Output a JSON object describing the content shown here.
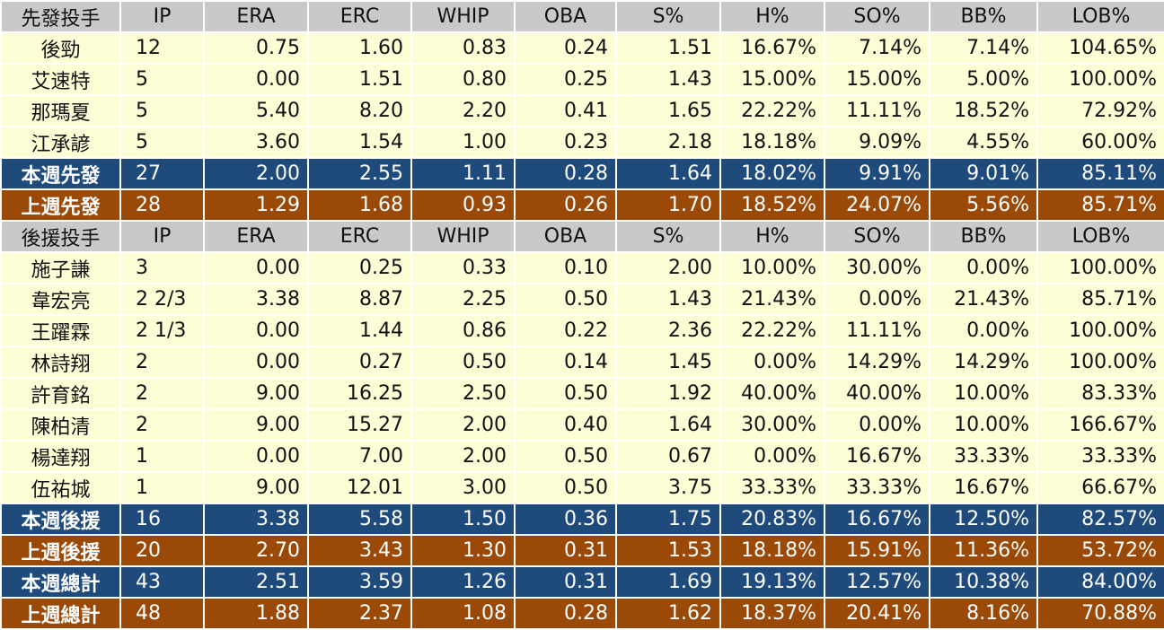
{
  "colors": {
    "header_bg": "#c9c9c9",
    "row_bg": "#fefed6",
    "this_week_bg": "#1f4a7c",
    "last_week_bg": "#9a4a06",
    "total_text": "#ffffff"
  },
  "table": {
    "columns": [
      "IP",
      "ERA",
      "ERC",
      "WHIP",
      "OBA",
      "S%",
      "H%",
      "SO%",
      "BB%",
      "LOB%"
    ],
    "rows": [
      {
        "kind": "header",
        "cells": [
          "先發投手",
          "IP",
          "ERA",
          "ERC",
          "WHIP",
          "OBA",
          "S%",
          "H%",
          "SO%",
          "BB%",
          "LOB%"
        ]
      },
      {
        "kind": "data",
        "cells": [
          "後勁",
          "12",
          "0.75",
          "1.60",
          "0.83",
          "0.24",
          "1.51",
          "16.67%",
          "7.14%",
          "7.14%",
          "104.65%"
        ]
      },
      {
        "kind": "data",
        "cells": [
          "艾速特",
          "5",
          "0.00",
          "1.51",
          "0.80",
          "0.25",
          "1.43",
          "15.00%",
          "15.00%",
          "5.00%",
          "100.00%"
        ]
      },
      {
        "kind": "data",
        "cells": [
          "那瑪夏",
          "5",
          "5.40",
          "8.20",
          "2.20",
          "0.41",
          "1.65",
          "22.22%",
          "11.11%",
          "18.52%",
          "72.92%"
        ]
      },
      {
        "kind": "data",
        "cells": [
          "江承諺",
          "5",
          "3.60",
          "1.54",
          "1.00",
          "0.23",
          "2.18",
          "18.18%",
          "9.09%",
          "4.55%",
          "60.00%"
        ]
      },
      {
        "kind": "blue",
        "cells": [
          "本週先發",
          "27",
          "2.00",
          "2.55",
          "1.11",
          "0.28",
          "1.64",
          "18.02%",
          "9.91%",
          "9.01%",
          "85.11%"
        ]
      },
      {
        "kind": "orange",
        "cells": [
          "上週先發",
          "28",
          "1.29",
          "1.68",
          "0.93",
          "0.26",
          "1.70",
          "18.52%",
          "24.07%",
          "5.56%",
          "85.71%"
        ]
      },
      {
        "kind": "header",
        "cells": [
          "後援投手",
          "IP",
          "ERA",
          "ERC",
          "WHIP",
          "OBA",
          "S%",
          "H%",
          "SO%",
          "BB%",
          "LOB%"
        ]
      },
      {
        "kind": "data",
        "cells": [
          "施子謙",
          "3",
          "0.00",
          "0.25",
          "0.33",
          "0.10",
          "2.00",
          "10.00%",
          "30.00%",
          "0.00%",
          "100.00%"
        ]
      },
      {
        "kind": "data",
        "cells": [
          "韋宏亮",
          "2 2/3",
          "3.38",
          "8.87",
          "2.25",
          "0.50",
          "1.43",
          "21.43%",
          "0.00%",
          "21.43%",
          "85.71%"
        ]
      },
      {
        "kind": "data",
        "cells": [
          "王躍霖",
          "2 1/3",
          "0.00",
          "1.44",
          "0.86",
          "0.22",
          "2.36",
          "22.22%",
          "11.11%",
          "0.00%",
          "100.00%"
        ]
      },
      {
        "kind": "data",
        "cells": [
          "林詩翔",
          "2",
          "0.00",
          "0.27",
          "0.50",
          "0.14",
          "1.45",
          "0.00%",
          "14.29%",
          "14.29%",
          "100.00%"
        ]
      },
      {
        "kind": "data",
        "cells": [
          "許育銘",
          "2",
          "9.00",
          "16.25",
          "2.50",
          "0.50",
          "1.92",
          "40.00%",
          "40.00%",
          "10.00%",
          "83.33%"
        ]
      },
      {
        "kind": "data",
        "cells": [
          "陳柏清",
          "2",
          "9.00",
          "15.27",
          "2.00",
          "0.40",
          "1.64",
          "30.00%",
          "0.00%",
          "10.00%",
          "166.67%"
        ]
      },
      {
        "kind": "data",
        "cells": [
          "楊達翔",
          "1",
          "0.00",
          "7.00",
          "2.00",
          "0.50",
          "0.67",
          "0.00%",
          "16.67%",
          "33.33%",
          "33.33%"
        ]
      },
      {
        "kind": "data",
        "cells": [
          "伍祐城",
          "1",
          "9.00",
          "12.01",
          "3.00",
          "0.50",
          "3.75",
          "33.33%",
          "33.33%",
          "16.67%",
          "66.67%"
        ]
      },
      {
        "kind": "blue",
        "cells": [
          "本週後援",
          "16",
          "3.38",
          "5.58",
          "1.50",
          "0.36",
          "1.75",
          "20.83%",
          "16.67%",
          "12.50%",
          "82.57%"
        ]
      },
      {
        "kind": "orange",
        "cells": [
          "上週後援",
          "20",
          "2.70",
          "3.43",
          "1.30",
          "0.31",
          "1.53",
          "18.18%",
          "15.91%",
          "11.36%",
          "53.72%"
        ]
      },
      {
        "kind": "blue",
        "cells": [
          "本週總計",
          "43",
          "2.51",
          "3.59",
          "1.26",
          "0.31",
          "1.69",
          "19.13%",
          "12.57%",
          "10.38%",
          "84.00%"
        ]
      },
      {
        "kind": "orange",
        "cells": [
          "上週總計",
          "48",
          "1.88",
          "2.37",
          "1.08",
          "0.28",
          "1.62",
          "18.37%",
          "20.41%",
          "8.16%",
          "70.88%"
        ]
      }
    ]
  }
}
